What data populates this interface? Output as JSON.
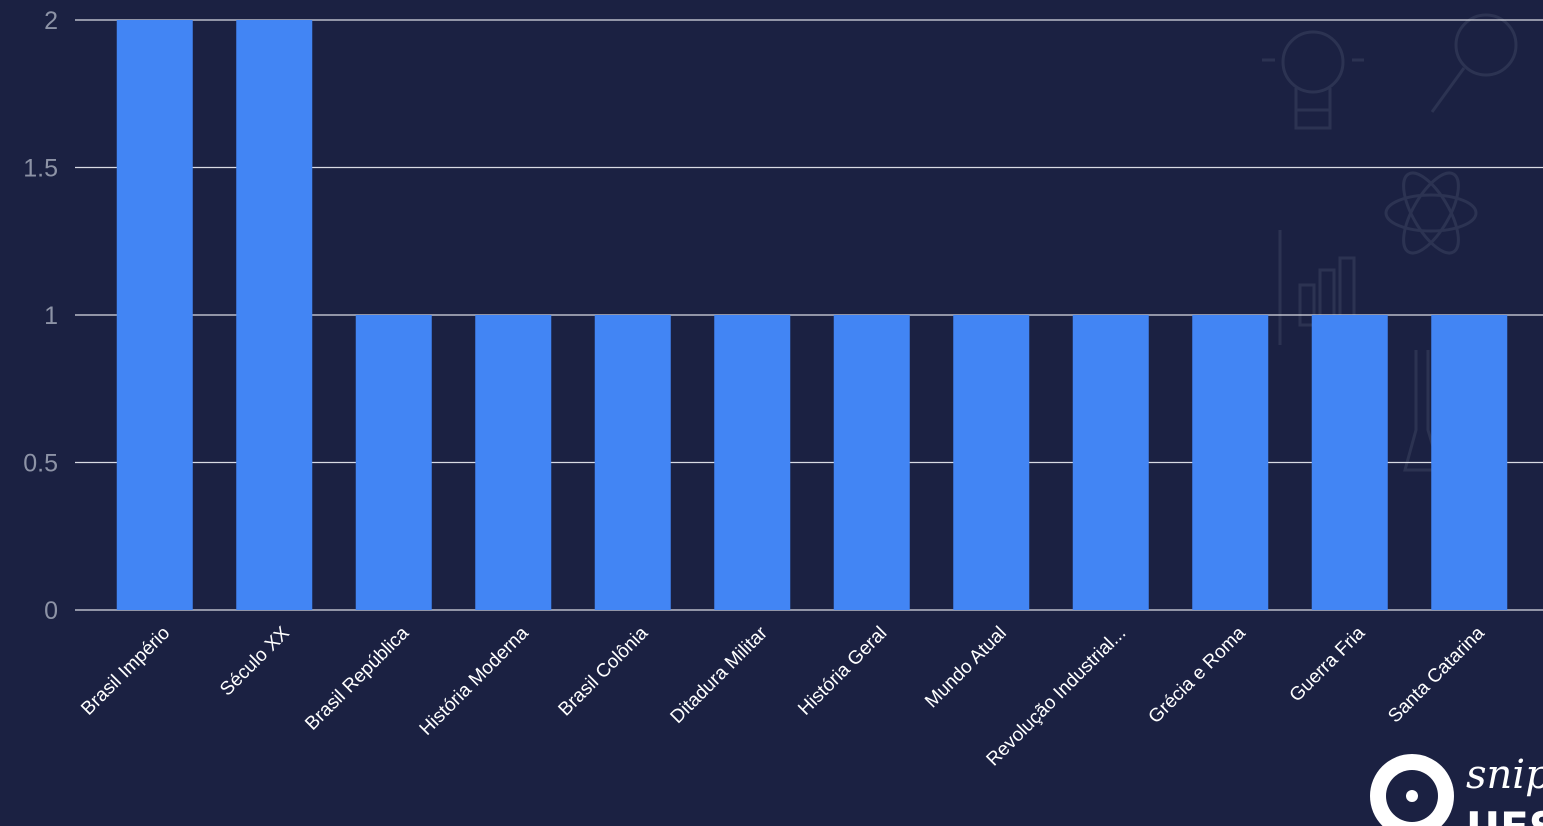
{
  "chart_data": {
    "type": "bar",
    "categories": [
      "Brasil Império",
      "Século XX",
      "Brasil República",
      "História Moderna",
      "Brasil Colônia",
      "Ditadura Militar",
      "História Geral",
      "Mundo Atual",
      "Revolução Industrial...",
      "Grécia e Roma",
      "Guerra Fria",
      "Santa Catarina"
    ],
    "values": [
      2,
      2,
      1,
      1,
      1,
      1,
      1,
      1,
      1,
      1,
      1,
      1
    ],
    "title": "",
    "xlabel": "",
    "ylabel": "",
    "ylim": [
      0,
      2
    ],
    "yticks": [
      "0",
      "0.5",
      "1",
      "1.5",
      "2"
    ],
    "grid": true,
    "bar_color": "#4285f4",
    "background": "#1b2142"
  },
  "watermark": {
    "line1": "snip",
    "line2": "UES"
  }
}
